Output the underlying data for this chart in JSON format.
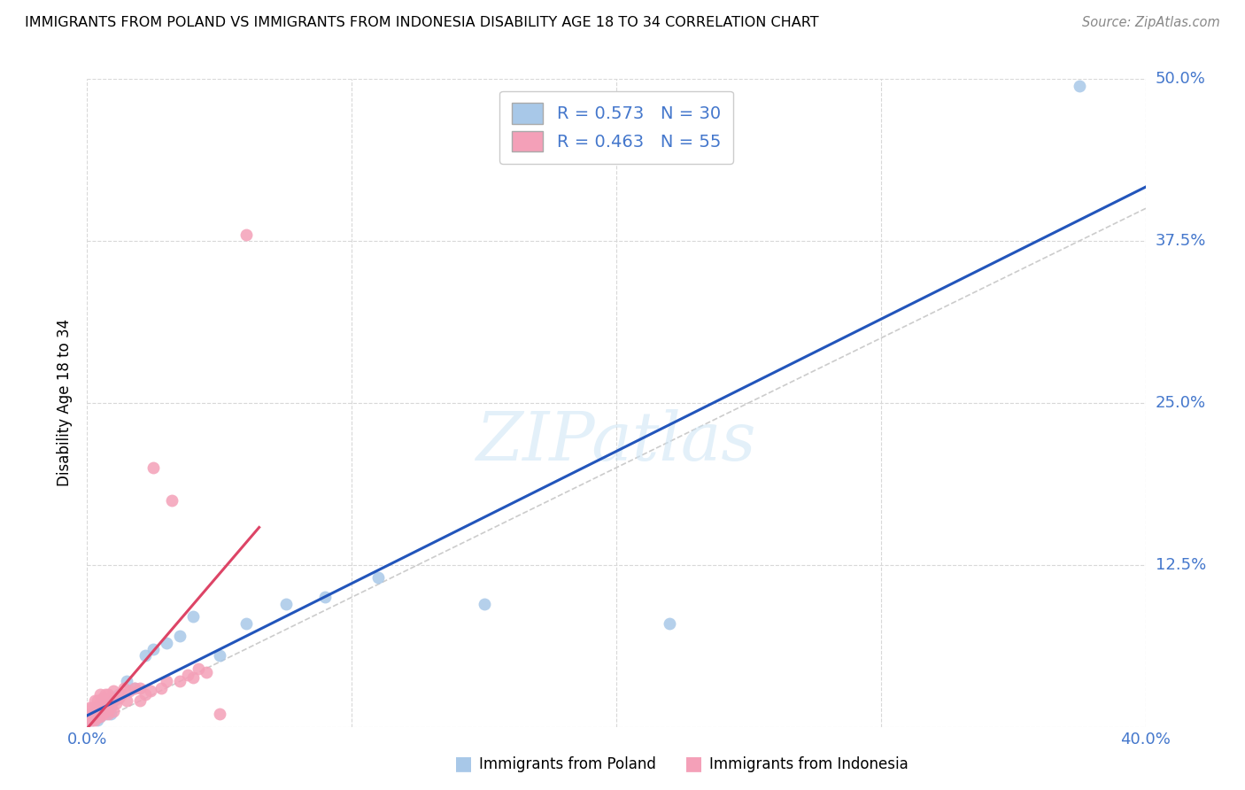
{
  "title": "IMMIGRANTS FROM POLAND VS IMMIGRANTS FROM INDONESIA DISABILITY AGE 18 TO 34 CORRELATION CHART",
  "source": "Source: ZipAtlas.com",
  "ylabel_label": "Disability Age 18 to 34",
  "xlim": [
    0.0,
    0.4
  ],
  "ylim": [
    0.0,
    0.5
  ],
  "xticks": [
    0.0,
    0.1,
    0.2,
    0.3,
    0.4
  ],
  "yticks": [
    0.0,
    0.125,
    0.25,
    0.375,
    0.5
  ],
  "poland_R": 0.573,
  "poland_N": 30,
  "indonesia_R": 0.463,
  "indonesia_N": 55,
  "poland_color": "#a8c8e8",
  "indonesia_color": "#f4a0b8",
  "poland_line_color": "#2255bb",
  "indonesia_line_color": "#dd4466",
  "diagonal_color": "#cccccc",
  "legend_label_1": "Immigrants from Poland",
  "legend_label_2": "Immigrants from Indonesia",
  "poland_x": [
    0.001,
    0.002,
    0.002,
    0.003,
    0.003,
    0.004,
    0.004,
    0.005,
    0.005,
    0.006,
    0.007,
    0.008,
    0.009,
    0.01,
    0.012,
    0.015,
    0.018,
    0.022,
    0.025,
    0.03,
    0.035,
    0.04,
    0.05,
    0.06,
    0.075,
    0.09,
    0.11,
    0.15,
    0.22,
    0.375
  ],
  "poland_y": [
    0.005,
    0.005,
    0.01,
    0.008,
    0.012,
    0.005,
    0.015,
    0.008,
    0.01,
    0.012,
    0.01,
    0.015,
    0.01,
    0.02,
    0.025,
    0.035,
    0.03,
    0.055,
    0.06,
    0.065,
    0.07,
    0.085,
    0.055,
    0.08,
    0.095,
    0.1,
    0.115,
    0.095,
    0.08,
    0.495
  ],
  "indonesia_x": [
    0.001,
    0.001,
    0.001,
    0.001,
    0.002,
    0.002,
    0.002,
    0.002,
    0.003,
    0.003,
    0.003,
    0.003,
    0.004,
    0.004,
    0.004,
    0.005,
    0.005,
    0.005,
    0.005,
    0.006,
    0.006,
    0.006,
    0.007,
    0.007,
    0.007,
    0.008,
    0.008,
    0.008,
    0.009,
    0.009,
    0.01,
    0.01,
    0.01,
    0.011,
    0.012,
    0.013,
    0.014,
    0.015,
    0.016,
    0.018,
    0.02,
    0.02,
    0.022,
    0.024,
    0.025,
    0.028,
    0.03,
    0.032,
    0.035,
    0.038,
    0.04,
    0.042,
    0.045,
    0.05,
    0.06
  ],
  "indonesia_y": [
    0.005,
    0.008,
    0.01,
    0.015,
    0.005,
    0.008,
    0.01,
    0.015,
    0.005,
    0.01,
    0.015,
    0.02,
    0.008,
    0.012,
    0.02,
    0.008,
    0.012,
    0.018,
    0.025,
    0.01,
    0.015,
    0.022,
    0.012,
    0.018,
    0.025,
    0.01,
    0.018,
    0.025,
    0.015,
    0.022,
    0.012,
    0.02,
    0.028,
    0.018,
    0.022,
    0.025,
    0.03,
    0.02,
    0.028,
    0.03,
    0.02,
    0.03,
    0.025,
    0.028,
    0.2,
    0.03,
    0.035,
    0.175,
    0.035,
    0.04,
    0.038,
    0.045,
    0.042,
    0.01,
    0.38
  ]
}
